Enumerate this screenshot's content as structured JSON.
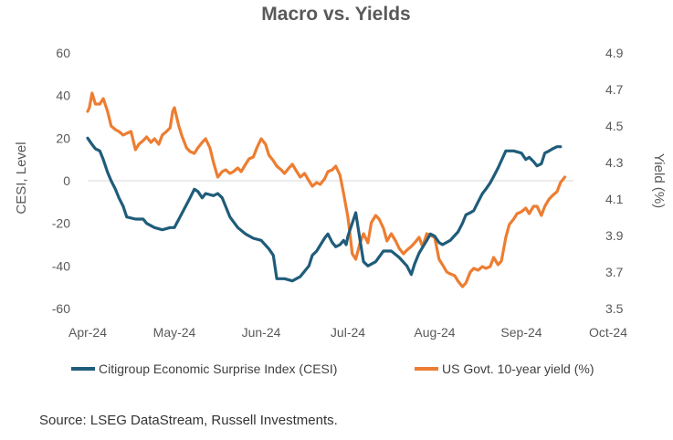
{
  "chart_data": {
    "type": "line",
    "title": "Macro vs. Yields",
    "x_labels": [
      "Apr-24",
      "May-24",
      "Jun-24",
      "Jul-24",
      "Aug-24",
      "Sep-24",
      "Oct-24"
    ],
    "y_left": {
      "label": "CESI, Level",
      "ticks": [
        "60",
        "40",
        "20",
        "0",
        "-20",
        "-40",
        "-60"
      ],
      "range": [
        -60,
        60
      ]
    },
    "y_right": {
      "label": "Yield (%)",
      "ticks": [
        "4.9",
        "4.7",
        "4.5",
        "4.3",
        "4.1",
        "3.9",
        "3.7",
        "3.5"
      ],
      "range": [
        3.5,
        4.9
      ]
    },
    "grid": false,
    "legend_position": "bottom",
    "series": [
      {
        "name": "Citigroup Economic Surprise Index (CESI)",
        "axis": "left",
        "color": "#1f5c7a",
        "points": [
          [
            0.0,
            20
          ],
          [
            0.05,
            17
          ],
          [
            0.09,
            15
          ],
          [
            0.14,
            14
          ],
          [
            0.18,
            10
          ],
          [
            0.23,
            4
          ],
          [
            0.27,
            0
          ],
          [
            0.32,
            -4
          ],
          [
            0.36,
            -8
          ],
          [
            0.41,
            -12
          ],
          [
            0.45,
            -17
          ],
          [
            0.55,
            -18
          ],
          [
            0.64,
            -18
          ],
          [
            0.68,
            -20
          ],
          [
            0.77,
            -22
          ],
          [
            0.86,
            -23
          ],
          [
            0.95,
            -22
          ],
          [
            1.0,
            -22
          ],
          [
            1.09,
            -15
          ],
          [
            1.18,
            -8
          ],
          [
            1.23,
            -4
          ],
          [
            1.27,
            -5
          ],
          [
            1.32,
            -8
          ],
          [
            1.36,
            -6
          ],
          [
            1.45,
            -7
          ],
          [
            1.5,
            -6
          ],
          [
            1.55,
            -8
          ],
          [
            1.64,
            -17
          ],
          [
            1.73,
            -22
          ],
          [
            1.82,
            -25
          ],
          [
            1.91,
            -27
          ],
          [
            2.0,
            -28
          ],
          [
            2.09,
            -32
          ],
          [
            2.14,
            -35
          ],
          [
            2.18,
            -46
          ],
          [
            2.27,
            -46
          ],
          [
            2.36,
            -47
          ],
          [
            2.45,
            -45
          ],
          [
            2.55,
            -40
          ],
          [
            2.59,
            -35
          ],
          [
            2.64,
            -33
          ],
          [
            2.73,
            -27
          ],
          [
            2.77,
            -25
          ],
          [
            2.82,
            -29
          ],
          [
            2.86,
            -31
          ],
          [
            2.91,
            -30
          ],
          [
            2.95,
            -28
          ],
          [
            2.98,
            -30
          ],
          [
            3.0,
            -26
          ],
          [
            3.09,
            -15
          ],
          [
            3.14,
            -28
          ],
          [
            3.18,
            -38
          ],
          [
            3.23,
            -40
          ],
          [
            3.32,
            -38
          ],
          [
            3.41,
            -33
          ],
          [
            3.5,
            -33
          ],
          [
            3.59,
            -36
          ],
          [
            3.68,
            -40
          ],
          [
            3.73,
            -44
          ],
          [
            3.77,
            -39
          ],
          [
            3.82,
            -34
          ],
          [
            3.91,
            -28
          ],
          [
            3.95,
            -25
          ],
          [
            4.0,
            -26
          ],
          [
            4.05,
            -29
          ],
          [
            4.09,
            -30
          ],
          [
            4.18,
            -28
          ],
          [
            4.27,
            -24
          ],
          [
            4.32,
            -20
          ],
          [
            4.36,
            -16
          ],
          [
            4.41,
            -15
          ],
          [
            4.45,
            -14
          ],
          [
            4.5,
            -10
          ],
          [
            4.55,
            -6
          ],
          [
            4.59,
            -4
          ],
          [
            4.64,
            -1
          ],
          [
            4.68,
            2
          ],
          [
            4.73,
            6
          ],
          [
            4.82,
            14
          ],
          [
            4.91,
            14
          ],
          [
            5.0,
            13
          ],
          [
            5.05,
            10
          ],
          [
            5.09,
            11
          ],
          [
            5.14,
            9
          ],
          [
            5.18,
            7
          ],
          [
            5.23,
            8
          ],
          [
            5.27,
            13
          ],
          [
            5.32,
            14
          ],
          [
            5.36,
            15
          ],
          [
            5.41,
            16
          ],
          [
            5.45,
            16
          ]
        ]
      },
      {
        "name": "US Govt. 10-year yield (%)",
        "axis": "right",
        "color": "#ed7d31",
        "points": [
          [
            0.0,
            4.58
          ],
          [
            0.02,
            4.6
          ],
          [
            0.05,
            4.68
          ],
          [
            0.09,
            4.62
          ],
          [
            0.14,
            4.62
          ],
          [
            0.18,
            4.65
          ],
          [
            0.23,
            4.58
          ],
          [
            0.27,
            4.5
          ],
          [
            0.32,
            4.48
          ],
          [
            0.36,
            4.47
          ],
          [
            0.41,
            4.45
          ],
          [
            0.45,
            4.46
          ],
          [
            0.5,
            4.47
          ],
          [
            0.55,
            4.37
          ],
          [
            0.59,
            4.4
          ],
          [
            0.64,
            4.42
          ],
          [
            0.68,
            4.44
          ],
          [
            0.73,
            4.41
          ],
          [
            0.77,
            4.43
          ],
          [
            0.82,
            4.4
          ],
          [
            0.86,
            4.45
          ],
          [
            0.91,
            4.47
          ],
          [
            0.95,
            4.49
          ],
          [
            0.98,
            4.58
          ],
          [
            1.0,
            4.6
          ],
          [
            1.05,
            4.5
          ],
          [
            1.09,
            4.44
          ],
          [
            1.14,
            4.38
          ],
          [
            1.18,
            4.36
          ],
          [
            1.23,
            4.35
          ],
          [
            1.27,
            4.38
          ],
          [
            1.32,
            4.41
          ],
          [
            1.36,
            4.43
          ],
          [
            1.41,
            4.38
          ],
          [
            1.45,
            4.3
          ],
          [
            1.5,
            4.22
          ],
          [
            1.55,
            4.25
          ],
          [
            1.59,
            4.26
          ],
          [
            1.64,
            4.24
          ],
          [
            1.68,
            4.25
          ],
          [
            1.73,
            4.27
          ],
          [
            1.77,
            4.25
          ],
          [
            1.82,
            4.29
          ],
          [
            1.86,
            4.32
          ],
          [
            1.91,
            4.33
          ],
          [
            1.95,
            4.38
          ],
          [
            2.0,
            4.43
          ],
          [
            2.05,
            4.4
          ],
          [
            2.09,
            4.34
          ],
          [
            2.14,
            4.31
          ],
          [
            2.18,
            4.28
          ],
          [
            2.23,
            4.26
          ],
          [
            2.27,
            4.24
          ],
          [
            2.32,
            4.27
          ],
          [
            2.36,
            4.29
          ],
          [
            2.41,
            4.25
          ],
          [
            2.45,
            4.22
          ],
          [
            2.5,
            4.24
          ],
          [
            2.55,
            4.2
          ],
          [
            2.59,
            4.17
          ],
          [
            2.64,
            4.19
          ],
          [
            2.68,
            4.18
          ],
          [
            2.73,
            4.21
          ],
          [
            2.77,
            4.25
          ],
          [
            2.82,
            4.26
          ],
          [
            2.86,
            4.28
          ],
          [
            2.91,
            4.23
          ],
          [
            2.95,
            4.13
          ],
          [
            3.0,
            4.0
          ],
          [
            3.05,
            3.8
          ],
          [
            3.09,
            3.77
          ],
          [
            3.14,
            3.86
          ],
          [
            3.18,
            3.91
          ],
          [
            3.23,
            3.86
          ],
          [
            3.27,
            3.97
          ],
          [
            3.32,
            4.01
          ],
          [
            3.36,
            3.99
          ],
          [
            3.41,
            3.94
          ],
          [
            3.45,
            3.87
          ],
          [
            3.5,
            3.91
          ],
          [
            3.55,
            3.87
          ],
          [
            3.59,
            3.83
          ],
          [
            3.64,
            3.8
          ],
          [
            3.68,
            3.82
          ],
          [
            3.73,
            3.84
          ],
          [
            3.77,
            3.86
          ],
          [
            3.82,
            3.89
          ],
          [
            3.86,
            3.84
          ],
          [
            3.91,
            3.91
          ],
          [
            3.95,
            3.9
          ],
          [
            4.0,
            3.89
          ],
          [
            4.05,
            3.77
          ],
          [
            4.09,
            3.74
          ],
          [
            4.14,
            3.7
          ],
          [
            4.18,
            3.69
          ],
          [
            4.23,
            3.68
          ],
          [
            4.27,
            3.65
          ],
          [
            4.32,
            3.62
          ],
          [
            4.36,
            3.64
          ],
          [
            4.41,
            3.7
          ],
          [
            4.45,
            3.72
          ],
          [
            4.5,
            3.71
          ],
          [
            4.55,
            3.73
          ],
          [
            4.59,
            3.72
          ],
          [
            4.64,
            3.73
          ],
          [
            4.68,
            3.78
          ],
          [
            4.73,
            3.74
          ],
          [
            4.77,
            3.76
          ],
          [
            4.82,
            3.89
          ],
          [
            4.86,
            3.96
          ],
          [
            4.91,
            3.99
          ],
          [
            4.95,
            4.02
          ],
          [
            5.0,
            4.03
          ],
          [
            5.05,
            4.05
          ],
          [
            5.09,
            4.02
          ],
          [
            5.14,
            4.06
          ],
          [
            5.18,
            4.06
          ],
          [
            5.23,
            4.01
          ],
          [
            5.27,
            4.06
          ],
          [
            5.32,
            4.1
          ],
          [
            5.36,
            4.12
          ],
          [
            5.41,
            4.14
          ],
          [
            5.45,
            4.19
          ],
          [
            5.5,
            4.22
          ]
        ]
      }
    ]
  },
  "source_text": "Source: LSEG DataStream, Russell Investments."
}
